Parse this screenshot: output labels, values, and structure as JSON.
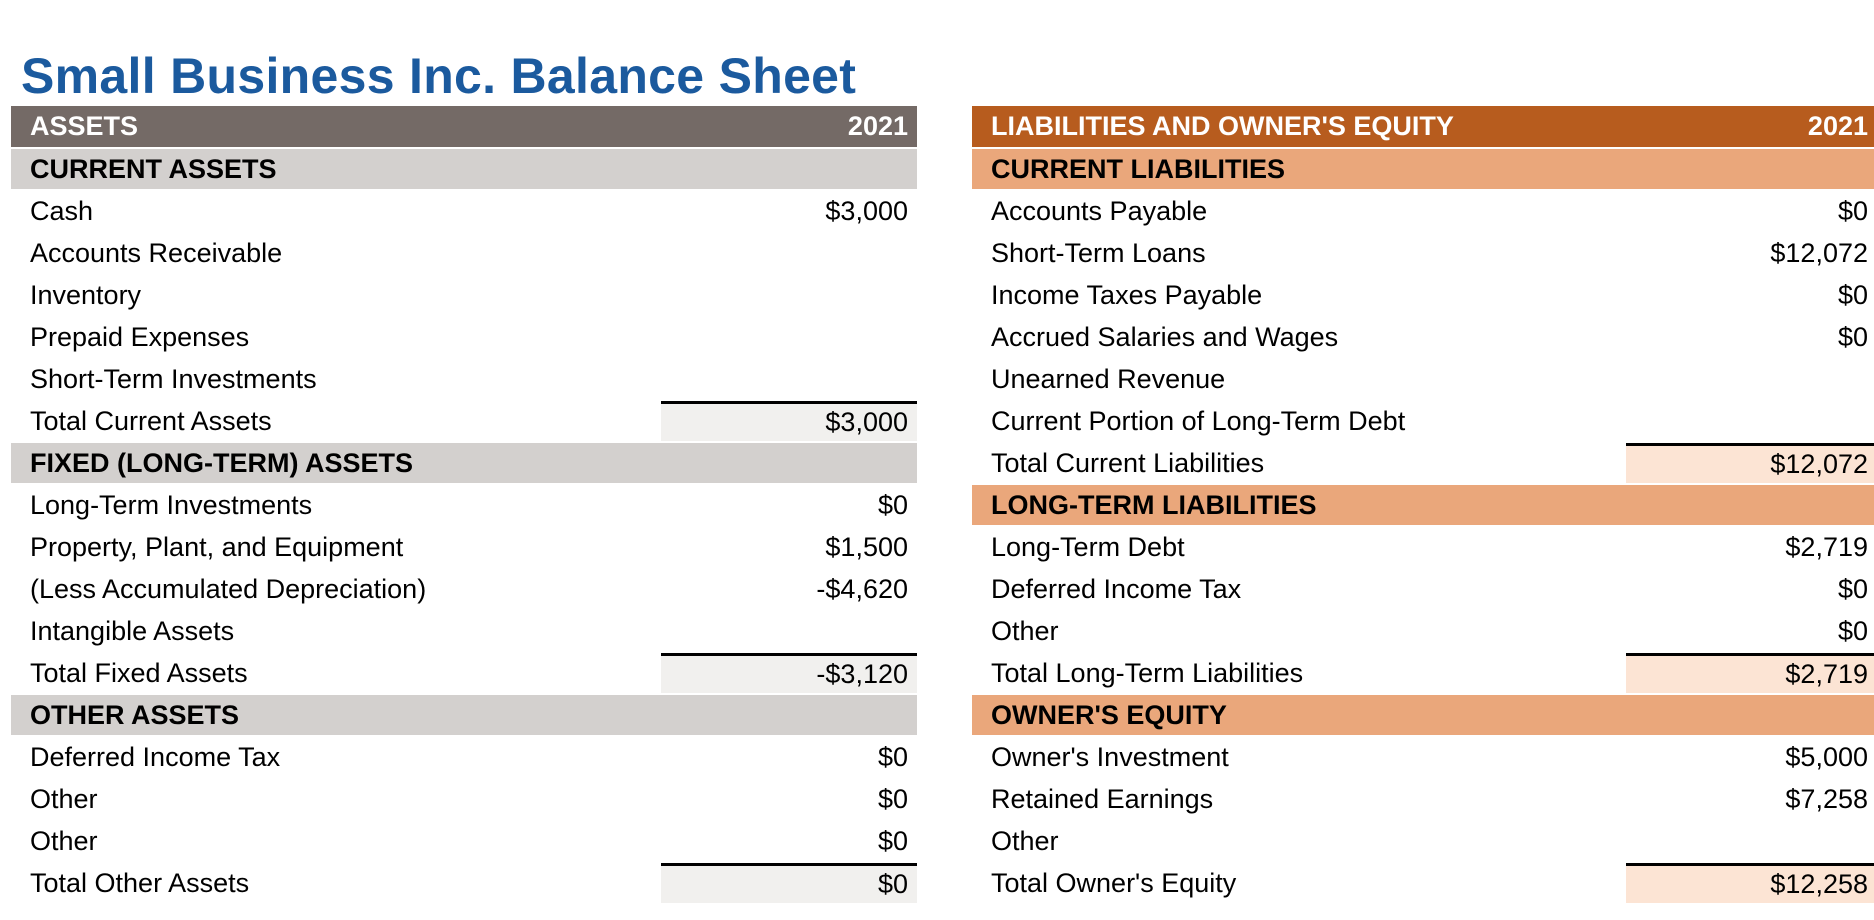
{
  "title": "Small Business Inc. Balance Sheet",
  "colors": {
    "title": "#1b5a9e",
    "text": "#000000",
    "page_background": "#ffffff",
    "total_border": "#000000"
  },
  "tables": [
    {
      "id": "assets",
      "header": {
        "label": "ASSETS",
        "year": "2021"
      },
      "colors": {
        "header_bg": "#746a66",
        "header_text": "#ffffff",
        "section_bg": "#d3d0ce",
        "total_bg": "#f1f0ee"
      },
      "rows": [
        {
          "type": "section",
          "label": "CURRENT ASSETS",
          "value": ""
        },
        {
          "type": "item",
          "label": "Cash",
          "value": "$3,000"
        },
        {
          "type": "item",
          "label": "Accounts Receivable",
          "value": ""
        },
        {
          "type": "item",
          "label": "Inventory",
          "value": ""
        },
        {
          "type": "item",
          "label": "Prepaid Expenses",
          "value": ""
        },
        {
          "type": "item",
          "label": "Short-Term Investments",
          "value": ""
        },
        {
          "type": "total",
          "label": "Total Current Assets",
          "value": "$3,000"
        },
        {
          "type": "section",
          "label": "FIXED (LONG-TERM) ASSETS",
          "value": ""
        },
        {
          "type": "item",
          "label": "Long-Term Investments",
          "value": "$0"
        },
        {
          "type": "item",
          "label": "Property, Plant, and Equipment",
          "value": "$1,500"
        },
        {
          "type": "item",
          "label": "(Less Accumulated Depreciation)",
          "value": "-$4,620"
        },
        {
          "type": "item",
          "label": "Intangible Assets",
          "value": ""
        },
        {
          "type": "total",
          "label": "Total Fixed Assets",
          "value": "-$3,120"
        },
        {
          "type": "section",
          "label": "OTHER ASSETS",
          "value": ""
        },
        {
          "type": "item",
          "label": "Deferred Income Tax",
          "value": "$0"
        },
        {
          "type": "item",
          "label": "Other",
          "value": "$0"
        },
        {
          "type": "item",
          "label": "Other",
          "value": "$0"
        },
        {
          "type": "total",
          "label": "Total Other Assets",
          "value": "$0"
        }
      ]
    },
    {
      "id": "liabilities-and-owners-equity",
      "header": {
        "label": "LIABILITIES AND OWNER'S EQUITY",
        "year": "2021"
      },
      "colors": {
        "header_bg": "#b75c1e",
        "header_text": "#ffffff",
        "section_bg": "#eaa77b",
        "total_bg": "#fce4d4"
      },
      "rows": [
        {
          "type": "section",
          "label": "CURRENT LIABILITIES",
          "value": ""
        },
        {
          "type": "item",
          "label": "Accounts Payable",
          "value": "$0"
        },
        {
          "type": "item",
          "label": "Short-Term Loans",
          "value": "$12,072"
        },
        {
          "type": "item",
          "label": "Income Taxes Payable",
          "value": "$0"
        },
        {
          "type": "item",
          "label": "Accrued Salaries and Wages",
          "value": "$0"
        },
        {
          "type": "item",
          "label": "Unearned Revenue",
          "value": ""
        },
        {
          "type": "item",
          "label": "Current Portion of Long-Term Debt",
          "value": ""
        },
        {
          "type": "total",
          "label": "Total Current Liabilities",
          "value": "$12,072"
        },
        {
          "type": "section",
          "label": "LONG-TERM LIABILITIES",
          "value": ""
        },
        {
          "type": "item",
          "label": "Long-Term Debt",
          "value": "$2,719"
        },
        {
          "type": "item",
          "label": "Deferred Income Tax",
          "value": "$0"
        },
        {
          "type": "item",
          "label": "Other",
          "value": "$0"
        },
        {
          "type": "total",
          "label": "Total Long-Term Liabilities",
          "value": "$2,719"
        },
        {
          "type": "section",
          "label": "OWNER'S EQUITY",
          "value": ""
        },
        {
          "type": "item",
          "label": "Owner's Investment",
          "value": "$5,000"
        },
        {
          "type": "item",
          "label": "Retained Earnings",
          "value": "$7,258"
        },
        {
          "type": "item",
          "label": "Other",
          "value": ""
        },
        {
          "type": "total",
          "label": "Total Owner's Equity",
          "value": "$12,258"
        }
      ]
    }
  ]
}
